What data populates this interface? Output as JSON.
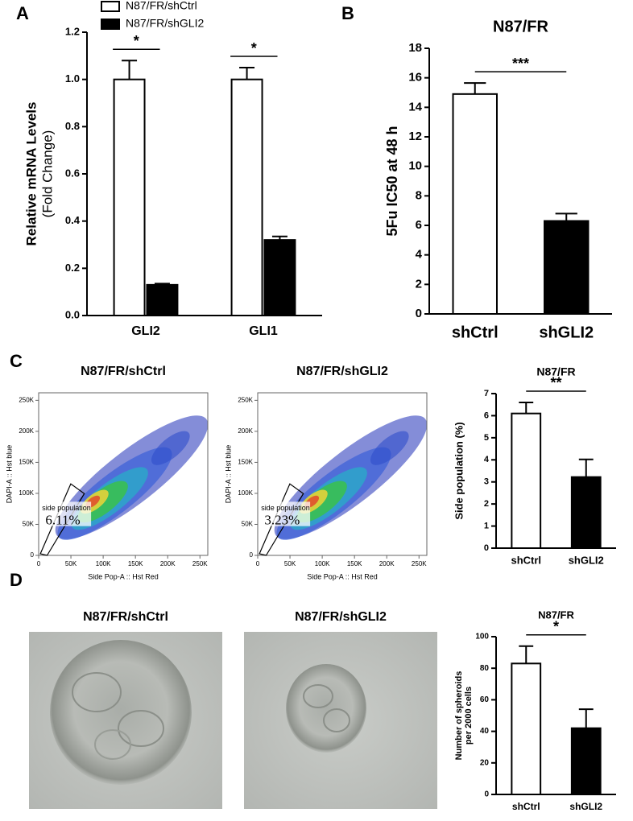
{
  "panel_labels": [
    "A",
    "B",
    "C",
    "D"
  ],
  "images": [
    {
      "title": "N87/FR/shCtrl"
    },
    {
      "title": "N87/FR/shGLI2"
    }
  ],
  "chart_data": [
    {
      "type": "bar",
      "categories": [
        "GLI2",
        "GLI1"
      ],
      "series": [
        {
          "name": "N87/FR/shCtrl",
          "color": "#ffffff",
          "values": [
            1.0,
            1.0
          ],
          "errors": [
            0.08,
            0.05
          ]
        },
        {
          "name": "N87/FR/shGLI2",
          "color": "#000000",
          "values": [
            0.13,
            0.32
          ],
          "errors": [
            0.005,
            0.015
          ]
        }
      ],
      "ylim": [
        0,
        1.2
      ],
      "yticks": [
        {
          "value": 0,
          "label": "0.0"
        },
        0.2,
        0.4,
        0.6,
        0.8,
        {
          "value": 1,
          "label": "1.0"
        },
        1.2
      ],
      "ylabel": "Relative mRNA Levels",
      "ylabel2": "(Fold Change)",
      "significance": [
        "*",
        "*"
      ]
    },
    {
      "type": "bar",
      "title": "N87/FR",
      "categories": [
        "shCtrl",
        "shGLI2"
      ],
      "values": [
        14.9,
        6.3
      ],
      "errors": [
        0.75,
        0.5
      ],
      "colors": [
        "#ffffff",
        "#000000"
      ],
      "ylim": [
        0,
        18
      ],
      "yticks": [
        0,
        2,
        4,
        6,
        8,
        10,
        12,
        14,
        16,
        18
      ],
      "ylabel": "5Fu IC50 at 48 h",
      "significance": "***"
    },
    {
      "type": "scatter",
      "title": "N87/FR/shCtrl",
      "xlabel": "Side Pop-A :: Hst Red",
      "ylabel": "DAPI-A :: Hst blue",
      "xlim": [
        0,
        262144
      ],
      "ylim": [
        0,
        262144
      ],
      "xticks": [
        0,
        {
          "value": 50000,
          "label": "50K"
        },
        {
          "value": 100000,
          "label": "100K"
        },
        {
          "value": 150000,
          "label": "150K"
        },
        {
          "value": 200000,
          "label": "200K"
        },
        {
          "value": 250000,
          "label": "250K"
        }
      ],
      "yticks": [
        0,
        {
          "value": 50000,
          "label": "50K"
        },
        {
          "value": 100000,
          "label": "100K"
        },
        {
          "value": 150000,
          "label": "150K"
        },
        {
          "value": 200000,
          "label": "200K"
        },
        {
          "value": 250000,
          "label": "250K"
        }
      ],
      "gate": {
        "label": "side population",
        "value": 6.11,
        "value_label": "6.11%"
      }
    },
    {
      "type": "scatter",
      "title": "N87/FR/shGLI2",
      "xlabel": "Side Pop-A :: Hst Red",
      "ylabel": "DAPI-A :: Hst blue",
      "xlim": [
        0,
        262144
      ],
      "ylim": [
        0,
        262144
      ],
      "xticks": [
        0,
        {
          "value": 50000,
          "label": "50K"
        },
        {
          "value": 100000,
          "label": "100K"
        },
        {
          "value": 150000,
          "label": "150K"
        },
        {
          "value": 200000,
          "label": "200K"
        },
        {
          "value": 250000,
          "label": "250K"
        }
      ],
      "yticks": [
        0,
        {
          "value": 50000,
          "label": "50K"
        },
        {
          "value": 100000,
          "label": "100K"
        },
        {
          "value": 150000,
          "label": "150K"
        },
        {
          "value": 200000,
          "label": "200K"
        },
        {
          "value": 250000,
          "label": "250K"
        }
      ],
      "gate": {
        "label": "side population",
        "value": 3.23,
        "value_label": "3.23%"
      }
    },
    {
      "type": "bar",
      "title": "N87/FR",
      "categories": [
        "shCtrl",
        "shGLI2"
      ],
      "values": [
        6.1,
        3.22
      ],
      "errors": [
        0.5,
        0.8
      ],
      "colors": [
        "#ffffff",
        "#000000"
      ],
      "ylim": [
        0,
        7
      ],
      "yticks": [
        0,
        1,
        2,
        3,
        4,
        5,
        6,
        7
      ],
      "ylabel": "Side population (%)",
      "significance": "**"
    },
    {
      "type": "bar",
      "title": "N87/FR",
      "categories": [
        "shCtrl",
        "shGLI2"
      ],
      "values": [
        83,
        42
      ],
      "errors": [
        11,
        12
      ],
      "colors": [
        "#ffffff",
        "#000000"
      ],
      "ylim": [
        0,
        100
      ],
      "yticks": [
        0,
        20,
        40,
        60,
        80,
        100
      ],
      "ylabel": "Number of spheroids",
      "ylabel2": "per 2000 cells",
      "significance": "*"
    }
  ]
}
